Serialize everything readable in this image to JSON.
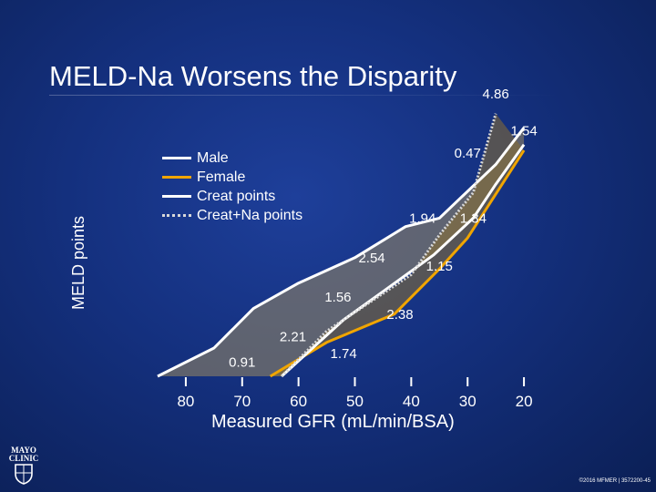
{
  "slide": {
    "title": "MELD-Na Worsens the Disparity",
    "logo_text": "MAYO CLINIC",
    "copyright": "©2016 MFMER | 3572200-45"
  },
  "chart_data": {
    "type": "line",
    "title": "MELD-Na Worsens the Disparity",
    "xlabel": "Measured GFR (mL/min/BSA)",
    "ylabel": "MELD points",
    "x_ticks": [
      80,
      70,
      60,
      50,
      40,
      30,
      20
    ],
    "x_reversed": true,
    "xlim": [
      85,
      15
    ],
    "ylim": [
      0,
      10
    ],
    "grid": false,
    "legend_position": "top-left",
    "series": [
      {
        "name": "Male",
        "color": "#ffffff",
        "style": "solid",
        "points": [
          [
            85,
            0.0
          ],
          [
            75,
            1.0
          ],
          [
            68,
            2.4
          ],
          [
            60,
            3.3
          ],
          [
            50,
            4.2
          ],
          [
            41,
            5.3
          ],
          [
            35,
            5.6
          ],
          [
            25,
            7.5
          ],
          [
            20,
            8.8
          ]
        ]
      },
      {
        "name": "Female",
        "color": "#f0a500",
        "style": "solid",
        "points": [
          [
            65,
            0.0
          ],
          [
            55,
            1.2
          ],
          [
            43,
            2.2
          ],
          [
            35,
            3.8
          ],
          [
            30,
            4.9
          ],
          [
            20,
            8.0
          ]
        ]
      },
      {
        "name": "Creat points",
        "color": "#ffffff",
        "style": "solid",
        "points": [
          [
            63,
            0.0
          ],
          [
            52,
            2.0
          ],
          [
            45,
            3.0
          ],
          [
            36,
            4.3
          ],
          [
            29,
            5.6
          ],
          [
            25,
            6.8
          ],
          [
            20,
            8.2
          ]
        ]
      },
      {
        "name": "Creat+Na points",
        "color": "#d8d8d8",
        "style": "dotted",
        "points": [
          [
            63,
            0.0
          ],
          [
            55,
            1.6
          ],
          [
            46,
            2.8
          ],
          [
            40,
            3.6
          ],
          [
            35,
            5.0
          ],
          [
            29,
            6.5
          ],
          [
            25,
            9.3
          ]
        ]
      }
    ],
    "annotations": [
      {
        "text": "0.91",
        "x": 70,
        "y": 0.5
      },
      {
        "text": "2.21",
        "x": 61,
        "y": 1.4
      },
      {
        "text": "1.74",
        "x": 52,
        "y": 0.8
      },
      {
        "text": "1.56",
        "x": 53,
        "y": 2.8
      },
      {
        "text": "2.38",
        "x": 42,
        "y": 2.2
      },
      {
        "text": "2.54",
        "x": 47,
        "y": 4.2
      },
      {
        "text": "1.15",
        "x": 35,
        "y": 3.9
      },
      {
        "text": "1.94",
        "x": 38,
        "y": 5.6
      },
      {
        "text": "1.34",
        "x": 29,
        "y": 5.6
      },
      {
        "text": "0.47",
        "x": 30,
        "y": 7.9
      },
      {
        "text": "4.86",
        "x": 25,
        "y": 10.0
      },
      {
        "text": "1.54",
        "x": 20,
        "y": 8.7
      }
    ],
    "gap_fills": [
      {
        "between": [
          "Male",
          "Creat points"
        ],
        "color": "#9a8a60",
        "opacity": 0.55
      },
      {
        "between": [
          "Female",
          "Creat+Na points"
        ],
        "color": "#8a7030",
        "opacity": 0.55
      }
    ]
  }
}
